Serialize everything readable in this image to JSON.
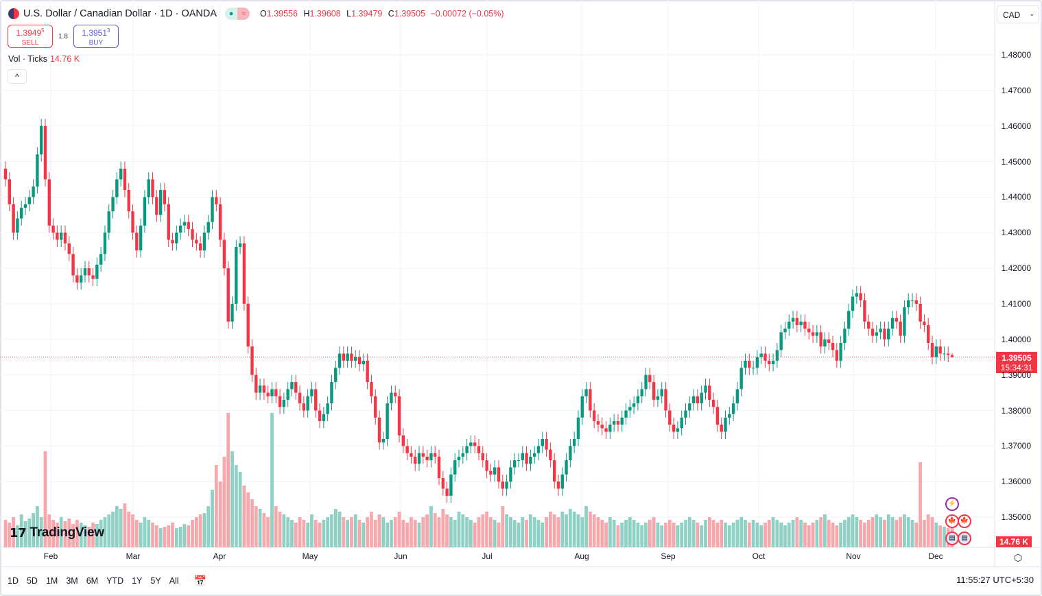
{
  "header": {
    "title": "U.S. Dollar / Canadian Dollar · 1D · OANDA",
    "o_label": "O",
    "o": "1.39556",
    "h_label": "H",
    "h": "1.39608",
    "l_label": "L",
    "l": "1.39479",
    "c_label": "C",
    "c": "1.39505",
    "change": "−0.00072 (−0.05%)",
    "flag_icon": "us-ca-flag-icon"
  },
  "trade": {
    "sell_price": "1.3949",
    "sell_sup": "5",
    "sell_label": "SELL",
    "spread": "1.8",
    "buy_price": "1.3951",
    "buy_sup": "3",
    "buy_label": "BUY"
  },
  "volume_legend": {
    "label": "Vol · Ticks",
    "value": "14.76 K"
  },
  "currency": "CAD",
  "price_label": {
    "price": "1.39505",
    "countdown": "15:34:31"
  },
  "volume_label": "14.76 K",
  "logo": "TradingView",
  "timeframes": [
    "1D",
    "5D",
    "1M",
    "3M",
    "6M",
    "YTD",
    "1Y",
    "5Y",
    "All"
  ],
  "clock": "11:55:27 UTC+5:30",
  "colors": {
    "up": "#089981",
    "down": "#f23645",
    "vol_up": "#8fd1c5",
    "vol_down": "#f7a8ad"
  },
  "chart_data": {
    "type": "candlestick",
    "symbol": "USDCAD",
    "interval": "1D",
    "y_ticks": [
      "1.48000",
      "1.47000",
      "1.46000",
      "1.45000",
      "1.44000",
      "1.43000",
      "1.42000",
      "1.41000",
      "1.40000",
      "1.39000",
      "1.38000",
      "1.37000",
      "1.36000",
      "1.35000"
    ],
    "ylim": [
      1.342,
      1.488
    ],
    "x_ticks": [
      "Feb",
      "Mar",
      "Apr",
      "May",
      "Jun",
      "Jul",
      "Aug",
      "Sep",
      "Oct",
      "Nov",
      "Dec"
    ],
    "grid": true,
    "close": [
      1.445,
      1.438,
      1.43,
      1.434,
      1.437,
      1.438,
      1.44,
      1.443,
      1.452,
      1.46,
      1.445,
      1.432,
      1.43,
      1.428,
      1.43,
      1.427,
      1.424,
      1.418,
      1.416,
      1.418,
      1.42,
      1.418,
      1.417,
      1.421,
      1.424,
      1.43,
      1.436,
      1.44,
      1.445,
      1.448,
      1.442,
      1.436,
      1.43,
      1.425,
      1.432,
      1.44,
      1.445,
      1.44,
      1.435,
      1.442,
      1.438,
      1.428,
      1.427,
      1.43,
      1.432,
      1.433,
      1.431,
      1.428,
      1.427,
      1.425,
      1.43,
      1.433,
      1.44,
      1.438,
      1.428,
      1.42,
      1.405,
      1.41,
      1.426,
      1.427,
      1.41,
      1.398,
      1.39,
      1.385,
      1.387,
      1.385,
      1.384,
      1.386,
      1.384,
      1.381,
      1.383,
      1.386,
      1.388,
      1.385,
      1.382,
      1.38,
      1.384,
      1.386,
      1.38,
      1.377,
      1.379,
      1.382,
      1.388,
      1.392,
      1.396,
      1.394,
      1.396,
      1.394,
      1.395,
      1.393,
      1.394,
      1.388,
      1.384,
      1.378,
      1.371,
      1.372,
      1.382,
      1.385,
      1.384,
      1.373,
      1.37,
      1.368,
      1.367,
      1.365,
      1.368,
      1.367,
      1.366,
      1.368,
      1.367,
      1.361,
      1.358,
      1.356,
      1.362,
      1.366,
      1.367,
      1.368,
      1.37,
      1.371,
      1.37,
      1.368,
      1.366,
      1.363,
      1.362,
      1.364,
      1.36,
      1.358,
      1.36,
      1.364,
      1.366,
      1.366,
      1.368,
      1.365,
      1.367,
      1.368,
      1.37,
      1.372,
      1.369,
      1.366,
      1.36,
      1.358,
      1.362,
      1.366,
      1.37,
      1.372,
      1.378,
      1.384,
      1.386,
      1.38,
      1.377,
      1.376,
      1.375,
      1.374,
      1.376,
      1.377,
      1.376,
      1.378,
      1.38,
      1.381,
      1.382,
      1.384,
      1.386,
      1.39,
      1.388,
      1.383,
      1.384,
      1.386,
      1.38,
      1.376,
      1.374,
      1.375,
      1.378,
      1.38,
      1.382,
      1.384,
      1.382,
      1.385,
      1.387,
      1.383,
      1.381,
      1.376,
      1.374,
      1.378,
      1.379,
      1.382,
      1.386,
      1.392,
      1.394,
      1.392,
      1.392,
      1.395,
      1.396,
      1.394,
      1.393,
      1.394,
      1.397,
      1.402,
      1.403,
      1.405,
      1.406,
      1.404,
      1.405,
      1.403,
      1.402,
      1.401,
      1.402,
      1.398,
      1.4,
      1.399,
      1.397,
      1.394,
      1.399,
      1.403,
      1.408,
      1.412,
      1.413,
      1.411,
      1.405,
      1.403,
      1.401,
      1.402,
      1.403,
      1.4,
      1.403,
      1.406,
      1.405,
      1.401,
      1.409,
      1.411,
      1.411,
      1.41,
      1.405,
      1.404,
      1.399,
      1.395,
      1.398,
      1.396,
      1.396,
      1.3956,
      1.39505
    ],
    "last_candle": {
      "open": 1.39556,
      "high": 1.39608,
      "low": 1.39479,
      "close": 1.39505
    },
    "volume_k": [
      20,
      18,
      22,
      16,
      24,
      19,
      21,
      25,
      30,
      22,
      70,
      24,
      20,
      18,
      22,
      19,
      21,
      17,
      20,
      18,
      16,
      15,
      18,
      17,
      20,
      22,
      24,
      26,
      30,
      28,
      32,
      26,
      24,
      20,
      18,
      22,
      20,
      18,
      16,
      14,
      15,
      16,
      18,
      14,
      15,
      17,
      16,
      20,
      22,
      24,
      25,
      30,
      42,
      60,
      48,
      66,
      98,
      70,
      60,
      55,
      45,
      40,
      35,
      30,
      28,
      25,
      22,
      98,
      30,
      26,
      24,
      22,
      20,
      18,
      22,
      20,
      18,
      24,
      20,
      18,
      20,
      22,
      24,
      28,
      26,
      22,
      20,
      22,
      24,
      20,
      18,
      22,
      26,
      20,
      24,
      22,
      18,
      20,
      22,
      26,
      20,
      18,
      22,
      20,
      18,
      22,
      24,
      30,
      25,
      22,
      28,
      24,
      22,
      20,
      26,
      24,
      22,
      20,
      18,
      22,
      24,
      26,
      22,
      20,
      18,
      30,
      24,
      22,
      20,
      18,
      22,
      20,
      24,
      22,
      20,
      18,
      22,
      26,
      24,
      22,
      26,
      24,
      28,
      26,
      24,
      22,
      30,
      26,
      24,
      22,
      20,
      18,
      22,
      20,
      16,
      18,
      20,
      22,
      20,
      18,
      16,
      18,
      20,
      22,
      18,
      16,
      18,
      20,
      18,
      16,
      18,
      20,
      22,
      20,
      18,
      16,
      20,
      22,
      20,
      18,
      20,
      18,
      16,
      18,
      20,
      22,
      20,
      18,
      20,
      18,
      16,
      18,
      20,
      22,
      20,
      18,
      16,
      18,
      20,
      22,
      20,
      18,
      16,
      18,
      20,
      22,
      24,
      20,
      18,
      16,
      18,
      20,
      22,
      24,
      22,
      20,
      18,
      20,
      22,
      24,
      22,
      20,
      24,
      22,
      20,
      22,
      24,
      22,
      20,
      18,
      62,
      20,
      24,
      22,
      18,
      16,
      15,
      14,
      14.76
    ]
  }
}
